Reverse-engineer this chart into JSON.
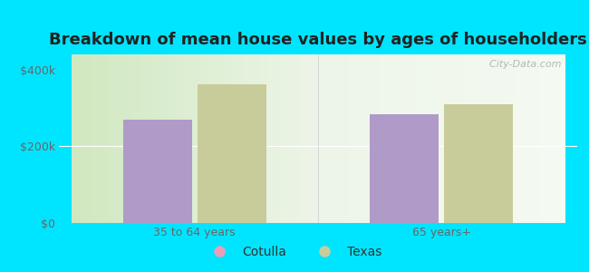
{
  "title": "Breakdown of mean house values by ages of householders",
  "categories": [
    "35 to 64 years",
    "65 years+"
  ],
  "series": [
    {
      "label": "Cotulla",
      "values": [
        270000,
        285000
      ],
      "color": "#b09ac8"
    },
    {
      "label": "Texas",
      "values": [
        362000,
        310000
      ],
      "color": "#c8cc9a"
    }
  ],
  "ylim": [
    0,
    440000
  ],
  "yticks": [
    0,
    200000,
    400000
  ],
  "ytick_labels": [
    "$0",
    "$200k",
    "$400k"
  ],
  "legend_marker_colors": [
    "#e8a0b8",
    "#c8cc9a"
  ],
  "background_outer": "#00e5ff",
  "background_inner_left": "#d8edcc",
  "background_inner_right": "#f0f8e8",
  "bar_width": 0.28,
  "title_fontsize": 13,
  "tick_fontsize": 9,
  "legend_fontsize": 10
}
